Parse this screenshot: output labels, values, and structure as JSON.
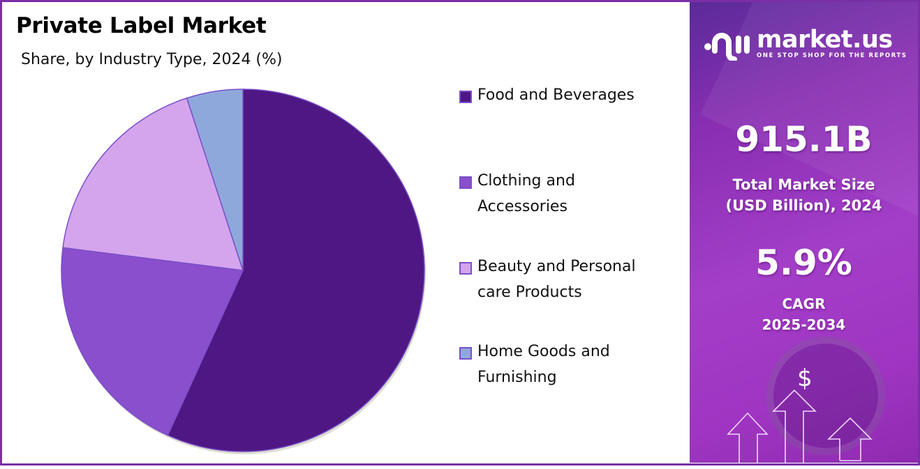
{
  "header": {
    "title": "Private Label Market",
    "subtitle": "Share, by Industry Type, 2024 (%)"
  },
  "legend": [
    {
      "label_line1": "Food and Beverages",
      "label_line2": "",
      "color": "#4e1783"
    },
    {
      "label_line1": "Clothing and",
      "label_line2": "Accessories",
      "color": "#8a4fcc"
    },
    {
      "label_line1": "Beauty and Personal",
      "label_line2": "care Products",
      "color": "#d4a5ec"
    },
    {
      "label_line1": "Home Goods and",
      "label_line2": "Furnishing",
      "color": "#8fa8dc"
    }
  ],
  "sidebar": {
    "brand": "market.us",
    "tagline": "ONE STOP SHOP FOR THE REPORTS",
    "market_size_value": "915.1B",
    "market_size_label_line1": "Total Market Size",
    "market_size_label_line2": "(USD Billion), 2024",
    "cagr_value": "5.9%",
    "cagr_label_line1": "CAGR",
    "cagr_label_line2": "2025-2034",
    "dollar_symbol": "$"
  },
  "chart_data": {
    "type": "pie",
    "title": "Private Label Market",
    "subtitle": "Share, by Industry Type, 2024 (%)",
    "categories": [
      "Food and Beverages",
      "Clothing and Accessories",
      "Beauty and Personal care Products",
      "Home Goods and Furnishing"
    ],
    "values": [
      56.8,
      20.2,
      18.0,
      5.0
    ],
    "colors": [
      "#4e1783",
      "#8a4fcc",
      "#d4a5ec",
      "#8fa8dc"
    ],
    "start_angle": "12 o'clock, clockwise",
    "legend_position": "right"
  }
}
